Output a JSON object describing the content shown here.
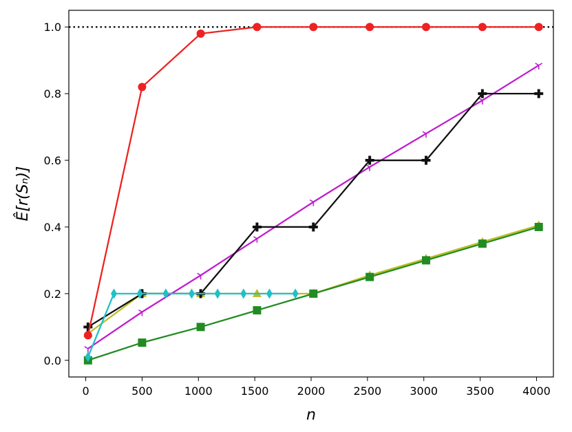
{
  "chart_data": {
    "type": "line",
    "title": "",
    "xlabel": "n",
    "ylabel": "Ê[r(Sₙ)]",
    "xlim": [
      -150,
      4150
    ],
    "ylim": [
      -0.05,
      1.05
    ],
    "xticks": [
      0,
      500,
      1000,
      1500,
      2000,
      2500,
      3000,
      3500,
      4000
    ],
    "xtick_labels": [
      "0",
      "500",
      "1000",
      "1500",
      "2000",
      "2500",
      "3000",
      "3500",
      "4000"
    ],
    "yticks": [
      0.0,
      0.2,
      0.4,
      0.6,
      0.8,
      1.0
    ],
    "ytick_labels": [
      "0.0",
      "0.2",
      "0.4",
      "0.6",
      "0.8",
      "1.0"
    ],
    "grid": false,
    "legend": "none",
    "reference_line": {
      "y": 1.0,
      "style": "dotted",
      "color": "#000000"
    },
    "series": [
      {
        "color": "#bcbd22",
        "marker": "triangle",
        "x": [
          20,
          500,
          1020,
          1520,
          2020,
          2520,
          3020,
          3520,
          4020
        ],
        "y": [
          0.08,
          0.2,
          0.2,
          0.2,
          0.2,
          0.255,
          0.305,
          0.355,
          0.405
        ]
      },
      {
        "color": "#228b22",
        "marker": "square",
        "x": [
          20,
          500,
          1020,
          1520,
          2020,
          2520,
          3020,
          3520,
          4020
        ],
        "y": [
          0.0,
          0.053,
          0.1,
          0.15,
          0.2,
          0.25,
          0.3,
          0.35,
          0.4
        ]
      },
      {
        "color": "#bf1fcf",
        "marker": "tri-down",
        "x": [
          20,
          500,
          1020,
          1520,
          2020,
          2520,
          3020,
          3520,
          4020
        ],
        "y": [
          0.035,
          0.145,
          0.255,
          0.365,
          0.475,
          0.58,
          0.68,
          0.78,
          0.885
        ]
      },
      {
        "color": "#111111",
        "marker": "plus",
        "x": [
          20,
          500,
          1020,
          1520,
          2020,
          2520,
          3020,
          3520,
          4020
        ],
        "y": [
          0.1,
          0.2,
          0.2,
          0.4,
          0.4,
          0.6,
          0.6,
          0.8,
          0.8
        ]
      },
      {
        "color": "#ee2222",
        "marker": "circle",
        "x": [
          20,
          500,
          1020,
          1520,
          2020,
          2520,
          3020,
          3520,
          4020
        ],
        "y": [
          0.075,
          0.82,
          0.98,
          1.0,
          1.0,
          1.0,
          1.0,
          1.0,
          1.0
        ]
      },
      {
        "color": "#20c0c8",
        "marker": "thin-diamond",
        "x": [
          20,
          250,
          480,
          710,
          940,
          1170,
          1400,
          1630,
          1860
        ],
        "y": [
          0.01,
          0.2,
          0.2,
          0.2,
          0.2,
          0.2,
          0.2,
          0.2,
          0.2
        ]
      }
    ]
  }
}
